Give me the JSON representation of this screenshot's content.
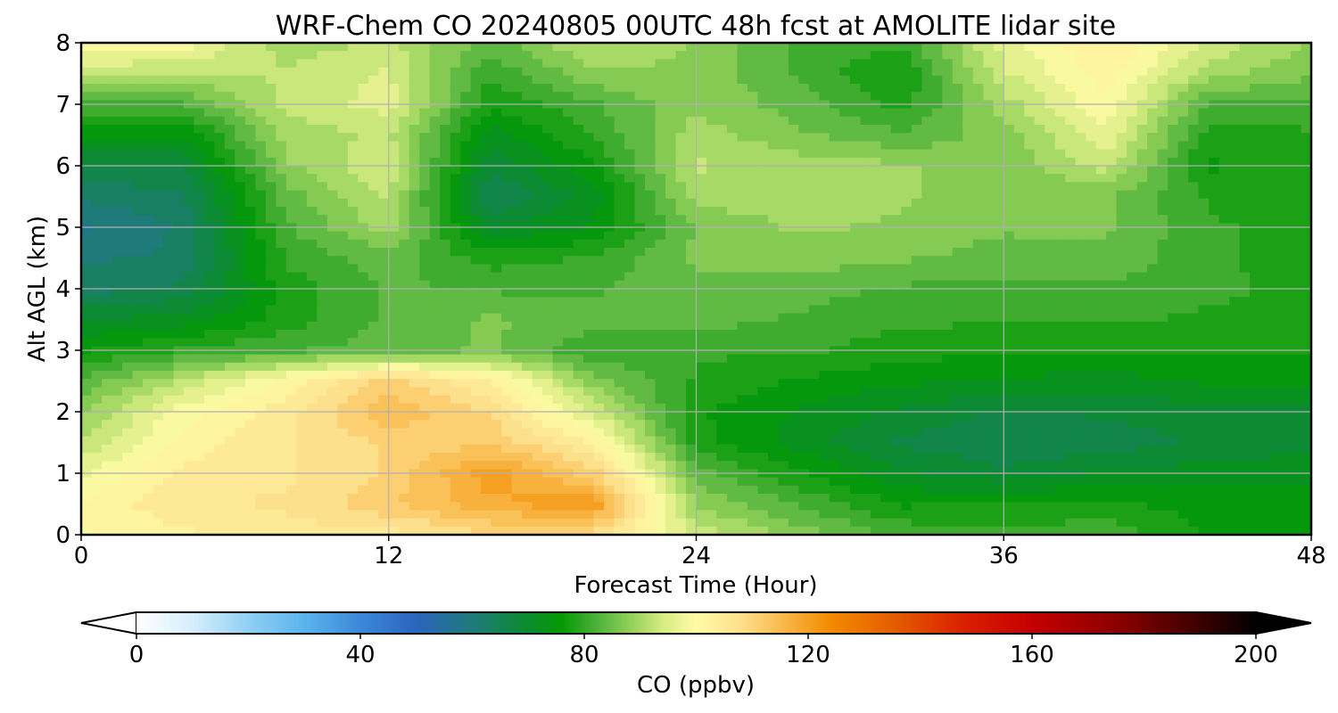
{
  "chart_data": {
    "type": "heatmap",
    "title": "WRF-Chem CO  20240805 00UTC 48h fcst at AMOLITE lidar site",
    "xlabel": "Forecast Time (Hour)",
    "ylabel": "Alt AGL (km)",
    "xlim": [
      0,
      48
    ],
    "ylim": [
      0,
      8
    ],
    "xticks": [
      "0",
      "12",
      "24",
      "36",
      "48"
    ],
    "yticks": [
      "0",
      "1",
      "2",
      "3",
      "4",
      "5",
      "6",
      "7",
      "8"
    ],
    "grid": true,
    "x": [
      0,
      4,
      8,
      12,
      16,
      20,
      24,
      28,
      32,
      36,
      40,
      44,
      48
    ],
    "y": [
      0,
      0.5,
      1,
      1.5,
      2,
      2.5,
      3,
      3.5,
      4,
      4.5,
      5,
      5.5,
      6,
      6.5,
      7,
      7.5,
      8
    ],
    "z": [
      [
        100,
        103,
        105,
        105,
        109,
        108,
        94,
        87,
        82,
        80,
        82,
        76,
        76
      ],
      [
        101,
        106,
        107,
        112,
        118,
        121,
        88,
        82,
        76,
        77,
        77,
        75,
        76
      ],
      [
        97,
        104,
        106,
        110,
        120,
        111,
        84,
        77,
        71,
        68,
        71,
        72,
        72
      ],
      [
        92,
        102,
        106,
        110,
        112,
        103,
        78,
        72,
        67,
        65,
        66,
        68,
        70
      ],
      [
        88,
        99,
        105,
        115,
        109,
        94,
        77,
        73,
        70,
        67,
        68,
        69,
        70
      ],
      [
        83,
        92,
        101,
        111,
        103,
        87,
        79,
        76,
        74,
        73,
        72,
        74,
        74
      ],
      [
        76,
        80,
        82,
        84,
        86,
        80,
        80,
        80,
        78,
        77,
        77,
        77,
        77
      ],
      [
        70,
        72,
        78,
        83,
        86,
        84,
        84,
        82,
        80,
        80,
        80,
        79,
        79
      ],
      [
        63,
        65,
        78,
        83,
        82,
        82,
        85,
        84,
        82,
        82,
        82,
        80,
        79
      ],
      [
        61,
        62,
        80,
        84,
        78,
        80,
        86,
        87,
        86,
        84,
        85,
        80,
        78
      ],
      [
        58,
        62,
        82,
        90,
        70,
        74,
        86,
        89,
        88,
        86,
        86,
        80,
        78
      ],
      [
        62,
        64,
        84,
        92,
        64,
        72,
        90,
        90,
        89,
        86,
        86,
        79,
        78
      ],
      [
        67,
        68,
        88,
        94,
        68,
        76,
        92,
        90,
        89,
        86,
        93,
        76,
        78
      ],
      [
        74,
        74,
        90,
        92,
        72,
        80,
        90,
        86,
        83,
        87,
        97,
        78,
        79
      ],
      [
        82,
        82,
        92,
        96,
        77,
        82,
        88,
        84,
        78,
        90,
        100,
        82,
        82
      ],
      [
        93,
        91,
        92,
        95,
        80,
        88,
        88,
        82,
        76,
        94,
        102,
        90,
        86
      ],
      [
        100,
        99,
        90,
        92,
        84,
        92,
        88,
        82,
        80,
        96,
        104,
        94,
        88
      ]
    ],
    "colorbar": {
      "label": "CO  (ppbv)",
      "min": 0,
      "max": 200,
      "ticks": [
        "0",
        "40",
        "80",
        "120",
        "160",
        "200"
      ],
      "extend": "both",
      "stops": [
        {
          "v": 0,
          "c": "#ffffff"
        },
        {
          "v": 10,
          "c": "#d6eefb"
        },
        {
          "v": 20,
          "c": "#90d0f4"
        },
        {
          "v": 30,
          "c": "#5ab4ec"
        },
        {
          "v": 40,
          "c": "#3c88d8"
        },
        {
          "v": 50,
          "c": "#2a64be"
        },
        {
          "v": 60,
          "c": "#1f7a7a"
        },
        {
          "v": 70,
          "c": "#0a8c2c"
        },
        {
          "v": 76,
          "c": "#059a05"
        },
        {
          "v": 82,
          "c": "#4ab038"
        },
        {
          "v": 88,
          "c": "#8fcf58"
        },
        {
          "v": 94,
          "c": "#d6ec82"
        },
        {
          "v": 100,
          "c": "#fffba6"
        },
        {
          "v": 108,
          "c": "#fde08c"
        },
        {
          "v": 116,
          "c": "#f9b646"
        },
        {
          "v": 124,
          "c": "#f38a00"
        },
        {
          "v": 136,
          "c": "#e45a00"
        },
        {
          "v": 148,
          "c": "#d81f00"
        },
        {
          "v": 160,
          "c": "#c40000"
        },
        {
          "v": 175,
          "c": "#8c0000"
        },
        {
          "v": 190,
          "c": "#3c0000"
        },
        {
          "v": 200,
          "c": "#000000"
        }
      ]
    }
  }
}
